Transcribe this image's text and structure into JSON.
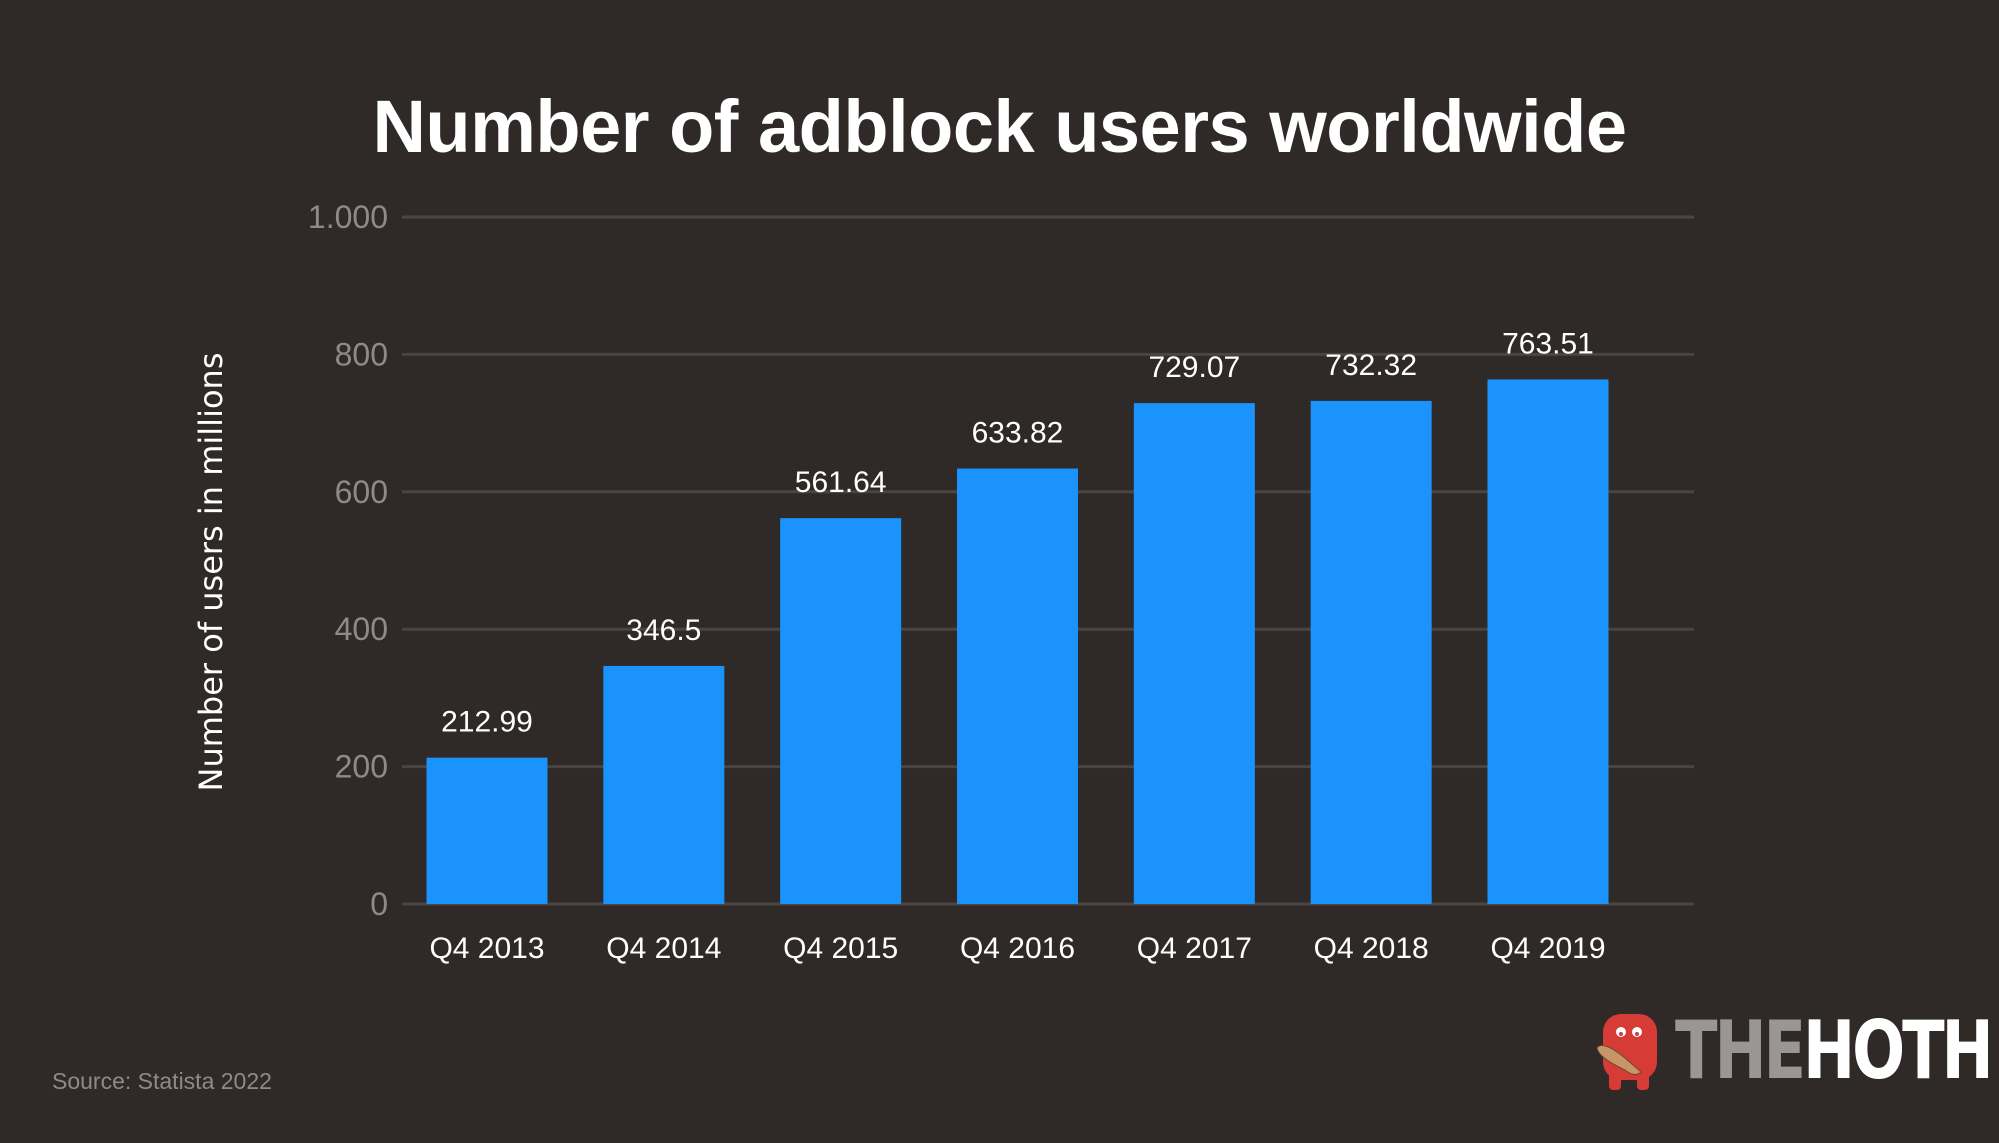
{
  "chart_data": {
    "type": "bar",
    "title": "Number of adblock users worldwide",
    "xlabel": "",
    "ylabel": "Number of users in millions",
    "categories": [
      "Q4 2013",
      "Q4 2014",
      "Q4 2015",
      "Q4 2016",
      "Q4 2017",
      "Q4 2018",
      "Q4 2019"
    ],
    "values": [
      212.99,
      346.5,
      561.64,
      633.82,
      729.07,
      732.32,
      763.51
    ],
    "data_labels": [
      "212.99",
      "346.5",
      "561.64",
      "633.82",
      "729.07",
      "732.32",
      "763.51"
    ],
    "ylim": [
      0,
      1000
    ],
    "yticks": [
      0,
      200,
      400,
      600,
      800,
      1000
    ],
    "ytick_labels": [
      "0",
      "200",
      "400",
      "600",
      "800",
      "1.000"
    ],
    "grid": true,
    "legend": "none",
    "colors": {
      "bar": "#1a94fc",
      "background": "#2f2a28",
      "grid": "#4a4542",
      "tick": "#8f8a87"
    }
  },
  "source": "Source: Statista 2022",
  "logo": {
    "the": "THE",
    "hoth": "HOTH",
    "mascot_color": "#d63b36"
  }
}
